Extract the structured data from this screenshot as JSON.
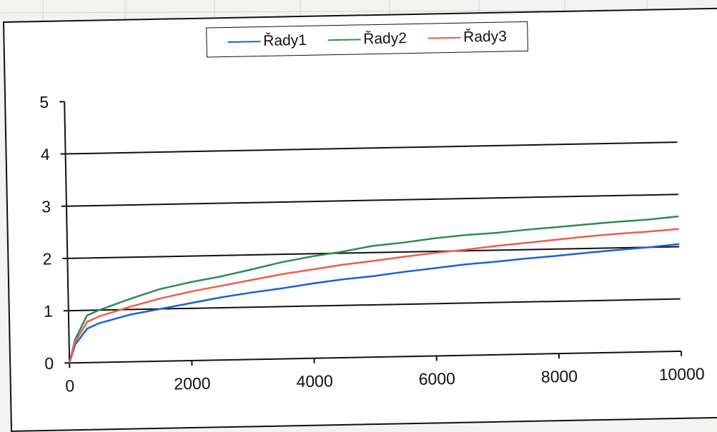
{
  "chart_data": {
    "type": "line",
    "title": "",
    "xlabel": "",
    "ylabel": "",
    "xlim": [
      0,
      10000
    ],
    "ylim": [
      0,
      5
    ],
    "x_ticks": [
      "0",
      "2000",
      "4000",
      "6000",
      "8000",
      "10000"
    ],
    "y_ticks": [
      "0",
      "1",
      "2",
      "3",
      "4",
      "5"
    ],
    "grid": "horizontal",
    "legend_position": "top",
    "x": [
      0,
      100,
      300,
      500,
      1000,
      1500,
      2000,
      2500,
      3000,
      3500,
      4000,
      4500,
      5000,
      5500,
      6000,
      6500,
      7000,
      7500,
      8000,
      8500,
      9000,
      9500,
      10000
    ],
    "series": [
      {
        "name": "Řady1",
        "color": "#2060d0",
        "values": [
          0,
          0.35,
          0.65,
          0.75,
          0.9,
          1.0,
          1.1,
          1.2,
          1.28,
          1.35,
          1.43,
          1.5,
          1.55,
          1.62,
          1.68,
          1.74,
          1.78,
          1.83,
          1.87,
          1.92,
          1.96,
          2.0,
          2.05
        ]
      },
      {
        "name": "Řady2",
        "color": "#2e8b57",
        "values": [
          0,
          0.45,
          0.9,
          1.0,
          1.2,
          1.38,
          1.5,
          1.6,
          1.72,
          1.85,
          1.95,
          2.03,
          2.13,
          2.18,
          2.25,
          2.3,
          2.33,
          2.38,
          2.42,
          2.46,
          2.5,
          2.53,
          2.58
        ]
      },
      {
        "name": "Řady3",
        "color": "#e8604c",
        "values": [
          0,
          0.4,
          0.78,
          0.88,
          1.05,
          1.2,
          1.32,
          1.42,
          1.52,
          1.62,
          1.7,
          1.78,
          1.84,
          1.91,
          1.97,
          2.02,
          2.08,
          2.13,
          2.18,
          2.23,
          2.27,
          2.3,
          2.34
        ]
      }
    ]
  }
}
